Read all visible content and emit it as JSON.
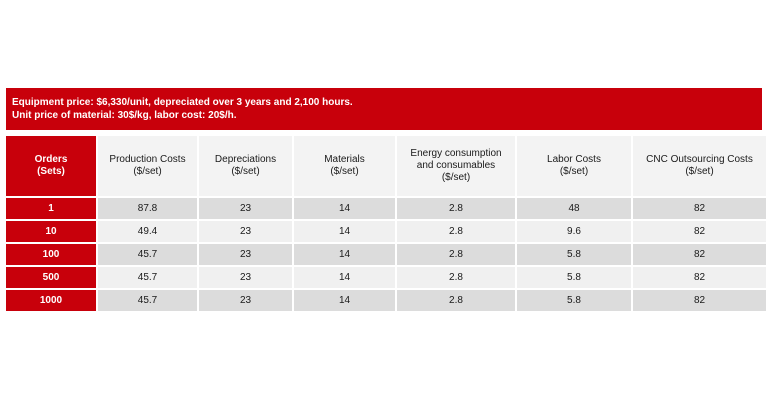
{
  "banner": {
    "line1": "Equipment price: $6,330/unit, depreciated over 3 years and 2,100 hours.",
    "line2": "Unit price of material: 30$/kg, labor cost: 20$/h."
  },
  "colors": {
    "accent_red": "#c8000b",
    "row_dark": "#dcdcdc",
    "row_light": "#f0f0f0",
    "header_bg": "#f3f3f3"
  },
  "table": {
    "headers": [
      [
        "Orders",
        "(Sets)"
      ],
      [
        "Production Costs",
        "($/set)"
      ],
      [
        "Depreciations",
        "($/set)"
      ],
      [
        "Materials",
        "($/set)"
      ],
      [
        "Energy consumption",
        "and consumables",
        "($/set)"
      ],
      [
        "Labor Costs",
        "($/set)"
      ],
      [
        "CNC Outsourcing Costs",
        "($/set)"
      ]
    ],
    "rows": [
      [
        "1",
        "87.8",
        "23",
        "14",
        "2.8",
        "48",
        "82"
      ],
      [
        "10",
        "49.4",
        "23",
        "14",
        "2.8",
        "9.6",
        "82"
      ],
      [
        "100",
        "45.7",
        "23",
        "14",
        "2.8",
        "5.8",
        "82"
      ],
      [
        "500",
        "45.7",
        "23",
        "14",
        "2.8",
        "5.8",
        "82"
      ],
      [
        "1000",
        "45.7",
        "23",
        "14",
        "2.8",
        "5.8",
        "82"
      ]
    ]
  }
}
